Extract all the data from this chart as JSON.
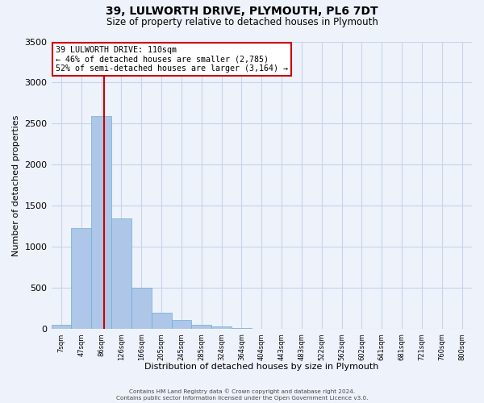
{
  "title": "39, LULWORTH DRIVE, PLYMOUTH, PL6 7DT",
  "subtitle": "Size of property relative to detached houses in Plymouth",
  "xlabel": "Distribution of detached houses by size in Plymouth",
  "ylabel": "Number of detached properties",
  "bar_labels": [
    "7sqm",
    "47sqm",
    "86sqm",
    "126sqm",
    "166sqm",
    "205sqm",
    "245sqm",
    "285sqm",
    "324sqm",
    "364sqm",
    "404sqm",
    "443sqm",
    "483sqm",
    "522sqm",
    "562sqm",
    "602sqm",
    "641sqm",
    "681sqm",
    "721sqm",
    "760sqm",
    "800sqm"
  ],
  "bar_values": [
    50,
    1230,
    2590,
    1350,
    500,
    200,
    110,
    55,
    30,
    10,
    5,
    5,
    3,
    2,
    1,
    1,
    0,
    0,
    0,
    0,
    0
  ],
  "bar_color": "#aec6e8",
  "bar_edge_color": "#6aafd6",
  "ylim": [
    0,
    3500
  ],
  "yticks": [
    0,
    500,
    1000,
    1500,
    2000,
    2500,
    3000,
    3500
  ],
  "property_label": "39 LULWORTH DRIVE: 110sqm",
  "annotation_line1": "← 46% of detached houses are smaller (2,785)",
  "annotation_line2": "52% of semi-detached houses are larger (3,164) →",
  "vline_color": "#cc0000",
  "vline_x": 2.62,
  "footer_line1": "Contains HM Land Registry data © Crown copyright and database right 2024.",
  "footer_line2": "Contains public sector information licensed under the Open Government Licence v3.0.",
  "background_color": "#eef2fa",
  "plot_bg_color": "#eef2fa",
  "grid_color": "#c8d4ec"
}
